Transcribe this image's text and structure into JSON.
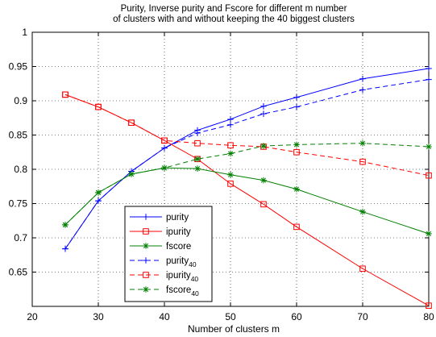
{
  "chart_data": {
    "type": "line",
    "title": "Purity, Inverse purity and Fscore for different m number",
    "subtitle": "of clusters with and without keeping the 40 biggest clusters",
    "xlabel": "Number of clusters m",
    "ylabel": "",
    "xlim": [
      20,
      80
    ],
    "ylim": [
      0.6,
      1.0
    ],
    "xticks": [
      "20",
      "30",
      "40",
      "50",
      "60",
      "70",
      "80"
    ],
    "yticks": [
      "0.65",
      "0.7",
      "0.75",
      "0.8",
      "0.85",
      "0.9",
      "0.95",
      "1"
    ],
    "grid": true,
    "legend_position": "lower-left",
    "x": [
      25,
      30,
      35,
      40,
      45,
      50,
      55,
      60,
      70,
      80
    ],
    "series": [
      {
        "name": "purity",
        "subscript": "",
        "color": "#0000ff",
        "line": "solid",
        "marker": "plus",
        "values": [
          0.684,
          0.754,
          0.797,
          0.831,
          0.857,
          0.873,
          0.892,
          0.905,
          0.932,
          0.947
        ]
      },
      {
        "name": "ipurity",
        "subscript": "",
        "color": "#ff0000",
        "line": "solid",
        "marker": "square",
        "values": [
          0.909,
          0.891,
          0.868,
          0.842,
          0.815,
          0.779,
          0.749,
          0.716,
          0.655,
          0.601
        ]
      },
      {
        "name": "fscore",
        "subscript": "",
        "color": "#008000",
        "line": "solid",
        "marker": "asterisk",
        "values": [
          0.719,
          0.766,
          0.793,
          0.802,
          0.801,
          0.792,
          0.784,
          0.771,
          0.738,
          0.706
        ]
      },
      {
        "name": "purity",
        "subscript": "40",
        "color": "#0000ff",
        "line": "dashed",
        "marker": "plus",
        "values": [
          0.684,
          0.754,
          0.797,
          0.831,
          0.853,
          0.865,
          0.881,
          0.891,
          0.916,
          0.931
        ]
      },
      {
        "name": "ipurity",
        "subscript": "40",
        "color": "#ff0000",
        "line": "dashed",
        "marker": "square",
        "values": [
          0.909,
          0.891,
          0.868,
          0.842,
          0.838,
          0.835,
          0.833,
          0.825,
          0.811,
          0.791
        ]
      },
      {
        "name": "fscore",
        "subscript": "40",
        "color": "#008000",
        "line": "dashed",
        "marker": "asterisk",
        "values": [
          0.719,
          0.766,
          0.793,
          0.802,
          0.815,
          0.823,
          0.834,
          0.836,
          0.838,
          0.833
        ]
      }
    ]
  }
}
